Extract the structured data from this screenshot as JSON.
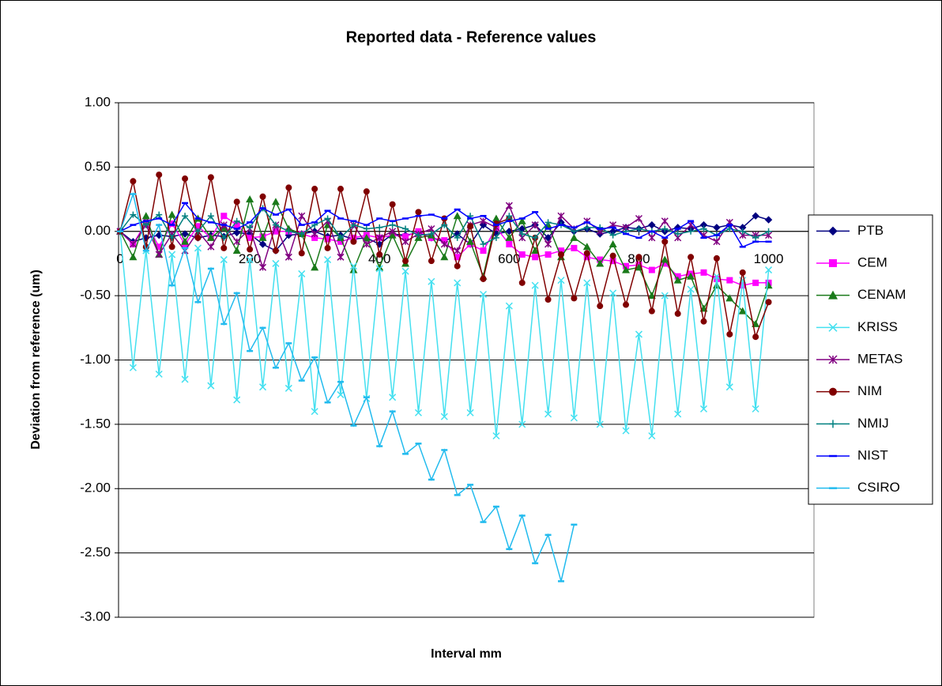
{
  "chart_data": {
    "type": "line",
    "title": "Reported data - Reference values",
    "x_label": "Interval mm",
    "y_label": "Deviation from reference (um)",
    "xlim": [
      0,
      1070
    ],
    "xticks": [
      0,
      200,
      400,
      600,
      800,
      1000
    ],
    "ylim": [
      -3,
      1
    ],
    "yticks": [
      {
        "value": -3,
        "label": "-3.00"
      },
      {
        "value": -2.5,
        "label": "-2.50"
      },
      {
        "value": -2,
        "label": "-2.00"
      },
      {
        "value": -1.5,
        "label": "-1.50"
      },
      {
        "value": -1,
        "label": "-1.00"
      },
      {
        "value": -0.5,
        "label": "-0.50"
      },
      {
        "value": 0,
        "label": "0.00"
      },
      {
        "value": 0.5,
        "label": "0.50"
      },
      {
        "value": 1,
        "label": "1.00"
      }
    ],
    "grid": true,
    "legend": "right",
    "x": [
      0,
      20,
      40,
      60,
      80,
      100,
      120,
      140,
      160,
      180,
      200,
      220,
      240,
      260,
      280,
      300,
      320,
      340,
      360,
      380,
      400,
      420,
      440,
      460,
      480,
      500,
      520,
      540,
      560,
      580,
      600,
      620,
      640,
      660,
      680,
      700,
      720,
      740,
      760,
      780,
      800,
      820,
      840,
      860,
      880,
      900,
      920,
      940,
      960,
      980,
      1000
    ],
    "series": [
      {
        "name": "PTB",
        "color": "#000080",
        "marker": "diamond",
        "values": [
          0,
          -0.08,
          -0.05,
          -0.03,
          -0.04,
          -0.02,
          -0.05,
          -0.03,
          -0.04,
          -0.01,
          -0.02,
          -0.1,
          -0.15,
          -0.03,
          -0.02,
          0.0,
          -0.04,
          -0.03,
          -0.06,
          -0.05,
          -0.1,
          -0.02,
          -0.03,
          -0.01,
          -0.05,
          -0.08,
          -0.02,
          -0.1,
          0.05,
          -0.02,
          0.0,
          0.02,
          0.05,
          -0.05,
          0.07,
          0.0,
          0.02,
          -0.02,
          0.0,
          0.03,
          0.02,
          0.05,
          0.0,
          0.03,
          0.02,
          0.05,
          0.03,
          0.05,
          0.03,
          0.12,
          0.09
        ]
      },
      {
        "name": "CEM",
        "color": "#ff00ff",
        "marker": "square",
        "values": [
          0,
          -0.1,
          0.07,
          -0.12,
          0.06,
          -0.1,
          0.04,
          -0.05,
          0.12,
          0.05,
          -0.05,
          -0.04,
          0.0,
          0.0,
          -0.02,
          -0.05,
          -0.06,
          -0.08,
          -0.05,
          -0.03,
          -0.05,
          -0.03,
          -0.04,
          0.0,
          -0.05,
          -0.07,
          -0.2,
          -0.1,
          -0.15,
          0.03,
          -0.1,
          -0.18,
          -0.2,
          -0.18,
          -0.15,
          -0.13,
          -0.2,
          -0.22,
          -0.23,
          -0.27,
          -0.26,
          -0.3,
          -0.25,
          -0.35,
          -0.33,
          -0.32,
          -0.37,
          -0.38,
          -0.42,
          -0.4,
          -0.4
        ]
      },
      {
        "name": "CENAM",
        "color": "#1a7a1a",
        "marker": "triangle",
        "values": [
          0,
          -0.2,
          0.12,
          -0.18,
          0.13,
          -0.08,
          0.1,
          -0.05,
          0.03,
          -0.15,
          0.25,
          -0.05,
          0.23,
          0.02,
          -0.02,
          -0.28,
          0.05,
          -0.05,
          -0.3,
          -0.05,
          -0.28,
          -0.03,
          -0.25,
          -0.05,
          -0.03,
          -0.2,
          0.12,
          -0.08,
          -0.35,
          0.1,
          -0.05,
          0.08,
          -0.15,
          0.05,
          -0.2,
          -0.05,
          -0.12,
          -0.25,
          -0.1,
          -0.3,
          -0.28,
          -0.5,
          -0.22,
          -0.38,
          -0.35,
          -0.6,
          -0.42,
          -0.52,
          -0.62,
          -0.72,
          -0.42
        ]
      },
      {
        "name": "KRISS",
        "color": "#44e0f0",
        "marker": "x",
        "values": [
          0,
          -1.06,
          -0.15,
          -1.11,
          -0.18,
          -1.15,
          -0.13,
          -1.2,
          -0.22,
          -1.31,
          -0.22,
          -1.21,
          -0.25,
          -1.22,
          -0.33,
          -1.4,
          -0.22,
          -1.27,
          -0.27,
          -1.3,
          -0.29,
          -1.29,
          -0.31,
          -1.41,
          -0.39,
          -1.44,
          -0.4,
          -1.41,
          -0.49,
          -1.59,
          -0.58,
          -1.5,
          -0.42,
          -1.42,
          -0.38,
          -1.45,
          -0.4,
          -1.5,
          -0.48,
          -1.55,
          -0.8,
          -1.59,
          -0.5,
          -1.42,
          -0.45,
          -1.38,
          -0.35,
          -1.21,
          -0.38,
          -1.38,
          -0.3
        ]
      },
      {
        "name": "METAS",
        "color": "#800080",
        "marker": "star",
        "values": [
          0,
          -0.1,
          0.05,
          -0.18,
          -0.02,
          -0.15,
          0.0,
          -0.12,
          0.05,
          -0.08,
          0.02,
          -0.28,
          0.05,
          -0.2,
          0.12,
          -0.02,
          0.08,
          -0.2,
          0.05,
          -0.1,
          -0.05,
          0.0,
          -0.08,
          -0.02,
          0.02,
          -0.1,
          -0.15,
          0.05,
          0.08,
          0.03,
          0.2,
          -0.05,
          0.05,
          -0.1,
          0.12,
          0.02,
          0.08,
          0.0,
          0.05,
          0.03,
          0.1,
          -0.05,
          0.08,
          -0.05,
          0.05,
          -0.03,
          -0.08,
          0.07,
          -0.03,
          -0.03,
          -0.03
        ]
      },
      {
        "name": "NIM",
        "color": "#800000",
        "marker": "circle",
        "values": [
          0,
          0.39,
          -0.12,
          0.44,
          -0.12,
          0.41,
          -0.05,
          0.42,
          -0.13,
          0.23,
          -0.14,
          0.27,
          -0.15,
          0.34,
          -0.17,
          0.33,
          -0.13,
          0.33,
          -0.08,
          0.31,
          -0.18,
          0.21,
          -0.23,
          0.15,
          -0.23,
          0.1,
          -0.27,
          0.04,
          -0.37,
          0.06,
          0.1,
          -0.4,
          -0.05,
          -0.53,
          -0.18,
          -0.52,
          -0.17,
          -0.58,
          -0.19,
          -0.57,
          -0.2,
          -0.62,
          -0.08,
          -0.64,
          -0.2,
          -0.7,
          -0.21,
          -0.8,
          -0.32,
          -0.82,
          -0.55
        ]
      },
      {
        "name": "NMIJ",
        "color": "#008080",
        "marker": "plus",
        "values": [
          0,
          0.13,
          0.05,
          0.13,
          -0.05,
          0.12,
          0.0,
          0.12,
          -0.05,
          0.08,
          0.03,
          0.18,
          0.05,
          0.0,
          -0.02,
          0.05,
          0.1,
          -0.05,
          0.05,
          0.02,
          0.03,
          0.05,
          0.02,
          -0.03,
          -0.02,
          0.05,
          -0.05,
          0.12,
          -0.1,
          -0.05,
          0.12,
          -0.02,
          -0.05,
          0.07,
          0.05,
          0.0,
          0.03,
          0.03,
          -0.03,
          0.0,
          0.02,
          0.0,
          0.02,
          -0.02,
          0.0,
          0.02,
          -0.03,
          0.02,
          0.0,
          -0.05,
          0.0
        ]
      },
      {
        "name": "NIST",
        "color": "#0000ff",
        "marker": "dash",
        "values": [
          0,
          0.05,
          0.08,
          0.1,
          0.05,
          0.22,
          0.1,
          0.07,
          0.05,
          0.02,
          0.07,
          0.18,
          0.13,
          0.17,
          0.05,
          0.07,
          0.16,
          0.1,
          0.08,
          0.05,
          0.1,
          0.08,
          0.1,
          0.12,
          0.13,
          0.1,
          0.17,
          0.1,
          0.12,
          0.05,
          0.08,
          0.1,
          0.15,
          0.02,
          0.05,
          0.03,
          0.07,
          0.02,
          0.03,
          -0.02,
          -0.05,
          0.0,
          -0.05,
          0.02,
          0.08,
          -0.05,
          -0.03,
          0.05,
          -0.12,
          -0.08,
          -0.08
        ]
      },
      {
        "name": "CSIRO",
        "color": "#22bbee",
        "marker": "dash",
        "values": [
          0,
          0.29,
          -0.15,
          0.05,
          -0.42,
          -0.13,
          -0.55,
          -0.29,
          -0.72,
          -0.48,
          -0.93,
          -0.75,
          -1.06,
          -0.87,
          -1.16,
          -0.98,
          -1.33,
          -1.17,
          -1.51,
          -1.29,
          -1.67,
          -1.4,
          -1.73,
          -1.65,
          -1.93,
          -1.7,
          -2.05,
          -1.97,
          -2.26,
          -2.14,
          -2.47,
          -2.21,
          -2.58,
          -2.36,
          -2.72,
          -2.28,
          null,
          null,
          null,
          null,
          null,
          null,
          null,
          null,
          null,
          null,
          null,
          null,
          null,
          null,
          null
        ]
      }
    ]
  }
}
